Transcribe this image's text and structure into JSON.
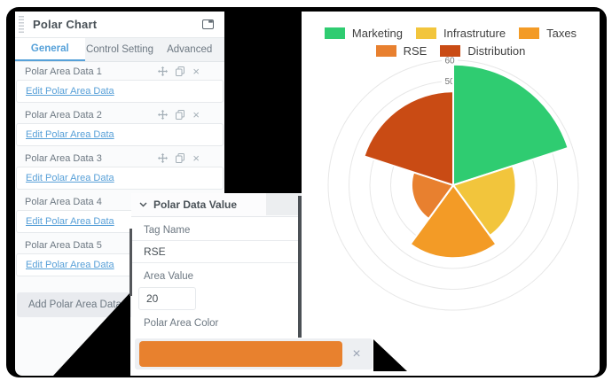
{
  "panel": {
    "title": "Polar Chart",
    "tabs": [
      {
        "label": "General",
        "active": true
      },
      {
        "label": "Control Setting",
        "active": false
      },
      {
        "label": "Advanced",
        "active": false
      }
    ],
    "items": [
      {
        "title": "Polar Area Data 1",
        "link": "Edit Polar Area Data"
      },
      {
        "title": "Polar Area Data 2",
        "link": "Edit Polar Area Data"
      },
      {
        "title": "Polar Area Data 3",
        "link": "Edit Polar Area Data"
      },
      {
        "title": "Polar Area Data 4",
        "link": "Edit Polar Area Data"
      },
      {
        "title": "Polar Area Data 5",
        "link": "Edit Polar Area Data"
      }
    ],
    "add_button": "Add Polar Area Data"
  },
  "popup": {
    "title": "Polar Data Value",
    "fields": {
      "tag_name_label": "Tag Name",
      "tag_name_value": "RSE",
      "area_value_label": "Area Value",
      "area_value_value": "20",
      "color_label": "Polar Area Color",
      "color_value": "#E8812E",
      "clear_icon": "×"
    }
  },
  "chart_data": {
    "type": "polarArea",
    "categories": [
      "Marketing",
      "Infrastruture",
      "Taxes",
      "RSE",
      "Distribution"
    ],
    "values": [
      58,
      30,
      35,
      20,
      45
    ],
    "colors": [
      "#2FCC71",
      "#F2C53C",
      "#F39B26",
      "#E8802F",
      "#C94B14"
    ],
    "rmax": 60,
    "tick_step": 10,
    "visible_ticks": [
      {
        "label": "60",
        "value": 60
      },
      {
        "label": "50",
        "value": 50
      }
    ],
    "legend_rows": [
      [
        "Marketing",
        "Infrastruture",
        "Taxes"
      ],
      [
        "RSE",
        "Distribution"
      ]
    ],
    "grid": true,
    "legend_position": "top"
  }
}
